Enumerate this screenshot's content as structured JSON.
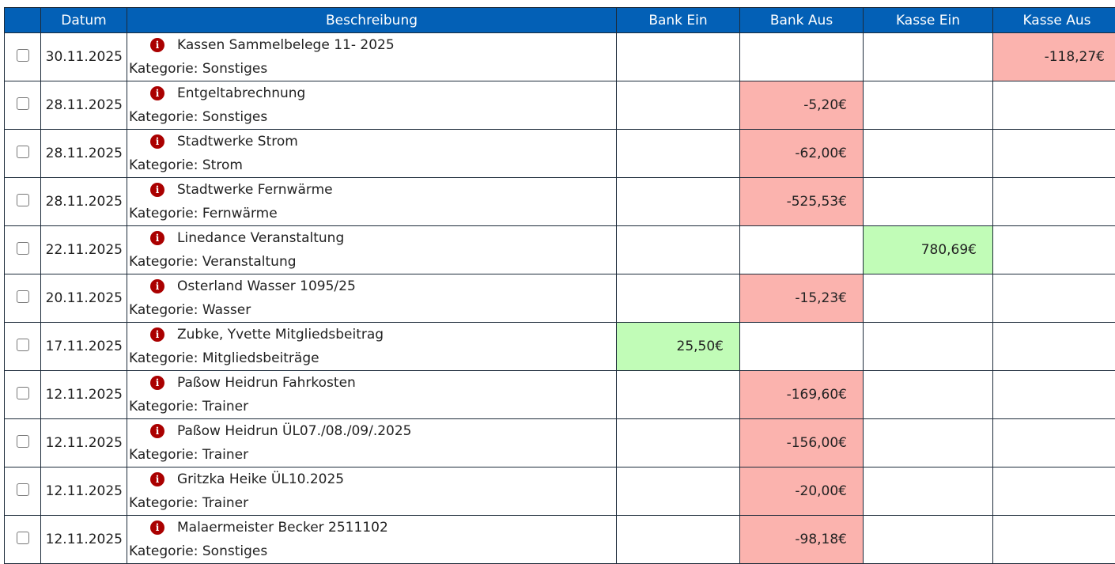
{
  "headers": [
    "",
    "Datum",
    "Beschreibung",
    "Bank Ein",
    "Bank Aus",
    "Kasse Ein",
    "Kasse Aus"
  ],
  "category_prefix": "Kategorie: ",
  "colors": {
    "header": "#0360b6",
    "negative": "#fbb3ae",
    "positive": "#c1fcb7",
    "info_icon": "#aa0000"
  },
  "rows": [
    {
      "date": "30.11.2025",
      "title": "Kassen Sammelbelege 11- 2025",
      "category": "Sonstiges",
      "bank_in": "",
      "bank_out": "",
      "cash_in": "",
      "cash_out": "-118,27€"
    },
    {
      "date": "28.11.2025",
      "title": "Entgeltabrechnung",
      "category": "Sonstiges",
      "bank_in": "",
      "bank_out": "-5,20€",
      "cash_in": "",
      "cash_out": ""
    },
    {
      "date": "28.11.2025",
      "title": "Stadtwerke Strom",
      "category": "Strom",
      "bank_in": "",
      "bank_out": "-62,00€",
      "cash_in": "",
      "cash_out": ""
    },
    {
      "date": "28.11.2025",
      "title": "Stadtwerke Fernwärme",
      "category": "Fernwärme",
      "bank_in": "",
      "bank_out": "-525,53€",
      "cash_in": "",
      "cash_out": ""
    },
    {
      "date": "22.11.2025",
      "title": "Linedance Veranstaltung",
      "category": "Veranstaltung",
      "bank_in": "",
      "bank_out": "",
      "cash_in": "780,69€",
      "cash_out": ""
    },
    {
      "date": "20.11.2025",
      "title": "Osterland Wasser 1095/25",
      "category": "Wasser",
      "bank_in": "",
      "bank_out": "-15,23€",
      "cash_in": "",
      "cash_out": ""
    },
    {
      "date": "17.11.2025",
      "title": "Zubke, Yvette Mitgliedsbeitrag",
      "category": "Mitgliedsbeiträge",
      "bank_in": "25,50€",
      "bank_out": "",
      "cash_in": "",
      "cash_out": ""
    },
    {
      "date": "12.11.2025",
      "title": "Paßow Heidrun Fahrkosten",
      "category": "Trainer",
      "bank_in": "",
      "bank_out": "-169,60€",
      "cash_in": "",
      "cash_out": ""
    },
    {
      "date": "12.11.2025",
      "title": "Paßow Heidrun ÜL07./08./09/.2025",
      "category": "Trainer",
      "bank_in": "",
      "bank_out": "-156,00€",
      "cash_in": "",
      "cash_out": ""
    },
    {
      "date": "12.11.2025",
      "title": "Gritzka Heike ÜL10.2025",
      "category": "Trainer",
      "bank_in": "",
      "bank_out": "-20,00€",
      "cash_in": "",
      "cash_out": ""
    },
    {
      "date": "12.11.2025",
      "title": "Malaermeister Becker 2511102",
      "category": "Sonstiges",
      "bank_in": "",
      "bank_out": "-98,18€",
      "cash_in": "",
      "cash_out": ""
    }
  ]
}
